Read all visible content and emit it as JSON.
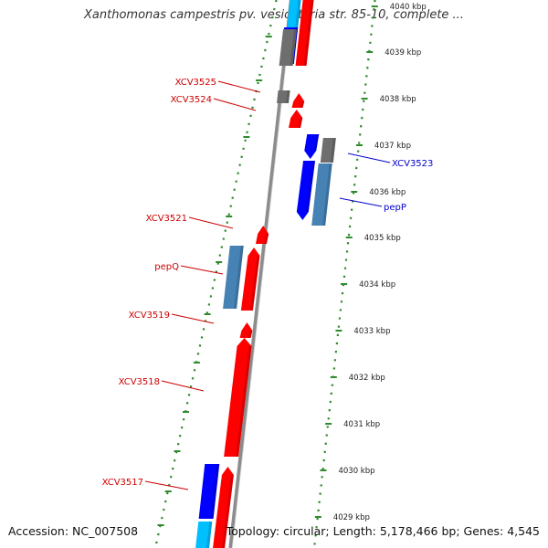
{
  "title": "Xanthomonas campestris pv. vesicatoria str. 85-10, complete ...",
  "accession": "Accession: NC_007508",
  "summary": "Topology: circular; Length: 5,178,466 bp; Genes: 4,545",
  "colors": {
    "red": "#ff0000",
    "blue": "#0000ff",
    "steel": "#4682b4",
    "gray": "#6e6e6e",
    "cyan": "#00bfff",
    "backbone": "#8c8c8c",
    "dots": "#2e8b2e",
    "label_red": "#cc0000",
    "label_blue": "#0000cc"
  },
  "scale": {
    "ticks": [
      "4040 kbp",
      "4039 kbp",
      "4038 kbp",
      "4037 kbp",
      "4036 kbp",
      "4035 kbp",
      "4034 kbp",
      "4033 kbp",
      "4032 kbp",
      "4031 kbp",
      "4030 kbp",
      "4029 kbp"
    ]
  },
  "labels": {
    "left": [
      "XCV3525",
      "XCV3524",
      "XCV3521",
      "pepQ",
      "XCV3519",
      "XCV3518",
      "XCV3517"
    ],
    "right": [
      "XCV3523",
      "pepP"
    ]
  }
}
